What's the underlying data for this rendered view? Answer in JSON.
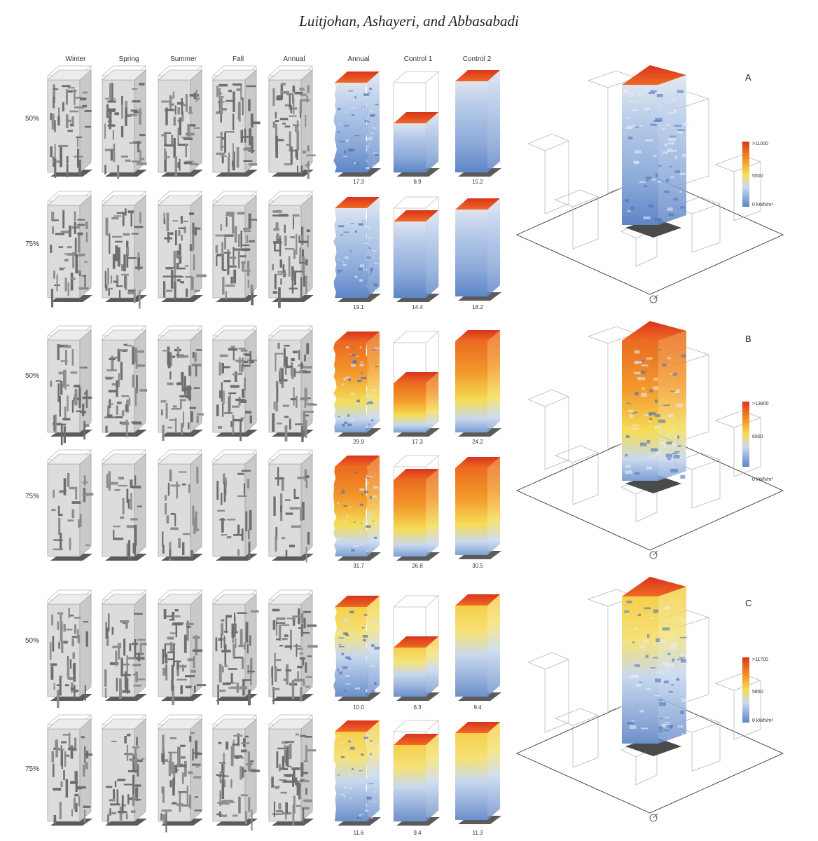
{
  "header": "Luitjohan, Ashayeri, and Abbasabadi",
  "columns": [
    "Winter",
    "Spring",
    "Summer",
    "Fall",
    "Annual",
    "Annual",
    "Control 1",
    "Control 2"
  ],
  "panels": [
    {
      "letter": "A",
      "rows": [
        {
          "label": "50%",
          "values": [
            "17.3",
            "8.9",
            "15.2"
          ]
        },
        {
          "label": "75%",
          "values": [
            "19.1",
            "14.4",
            "18.2"
          ]
        }
      ],
      "legend": {
        "max": ">11000",
        "mid": "5500",
        "min": "0 kWh/m²"
      }
    },
    {
      "letter": "B",
      "rows": [
        {
          "label": "50%",
          "values": [
            "29.9",
            "17.3",
            "24.2"
          ]
        },
        {
          "label": "75%",
          "values": [
            "31.7",
            "26.8",
            "30.5"
          ]
        }
      ],
      "legend": {
        "max": ">13800",
        "mid": "6900",
        "min": "0 kWh/m²"
      }
    },
    {
      "letter": "C",
      "rows": [
        {
          "label": "50%",
          "values": [
            "10.0",
            "6.3",
            "9.4"
          ]
        },
        {
          "label": "75%",
          "values": [
            "11.6",
            "9.4",
            "11.3"
          ]
        }
      ],
      "legend": {
        "max": ">11700",
        "mid": "5850",
        "min": "0 kWh/m²"
      }
    }
  ],
  "colors": {
    "red": "#e0421e",
    "orange": "#f39a2c",
    "yellow": "#f5dd57",
    "lightblue": "#b9cdea",
    "blue": "#5d85c6",
    "graymass": "#dcdcdc",
    "shadow": "#555555"
  }
}
